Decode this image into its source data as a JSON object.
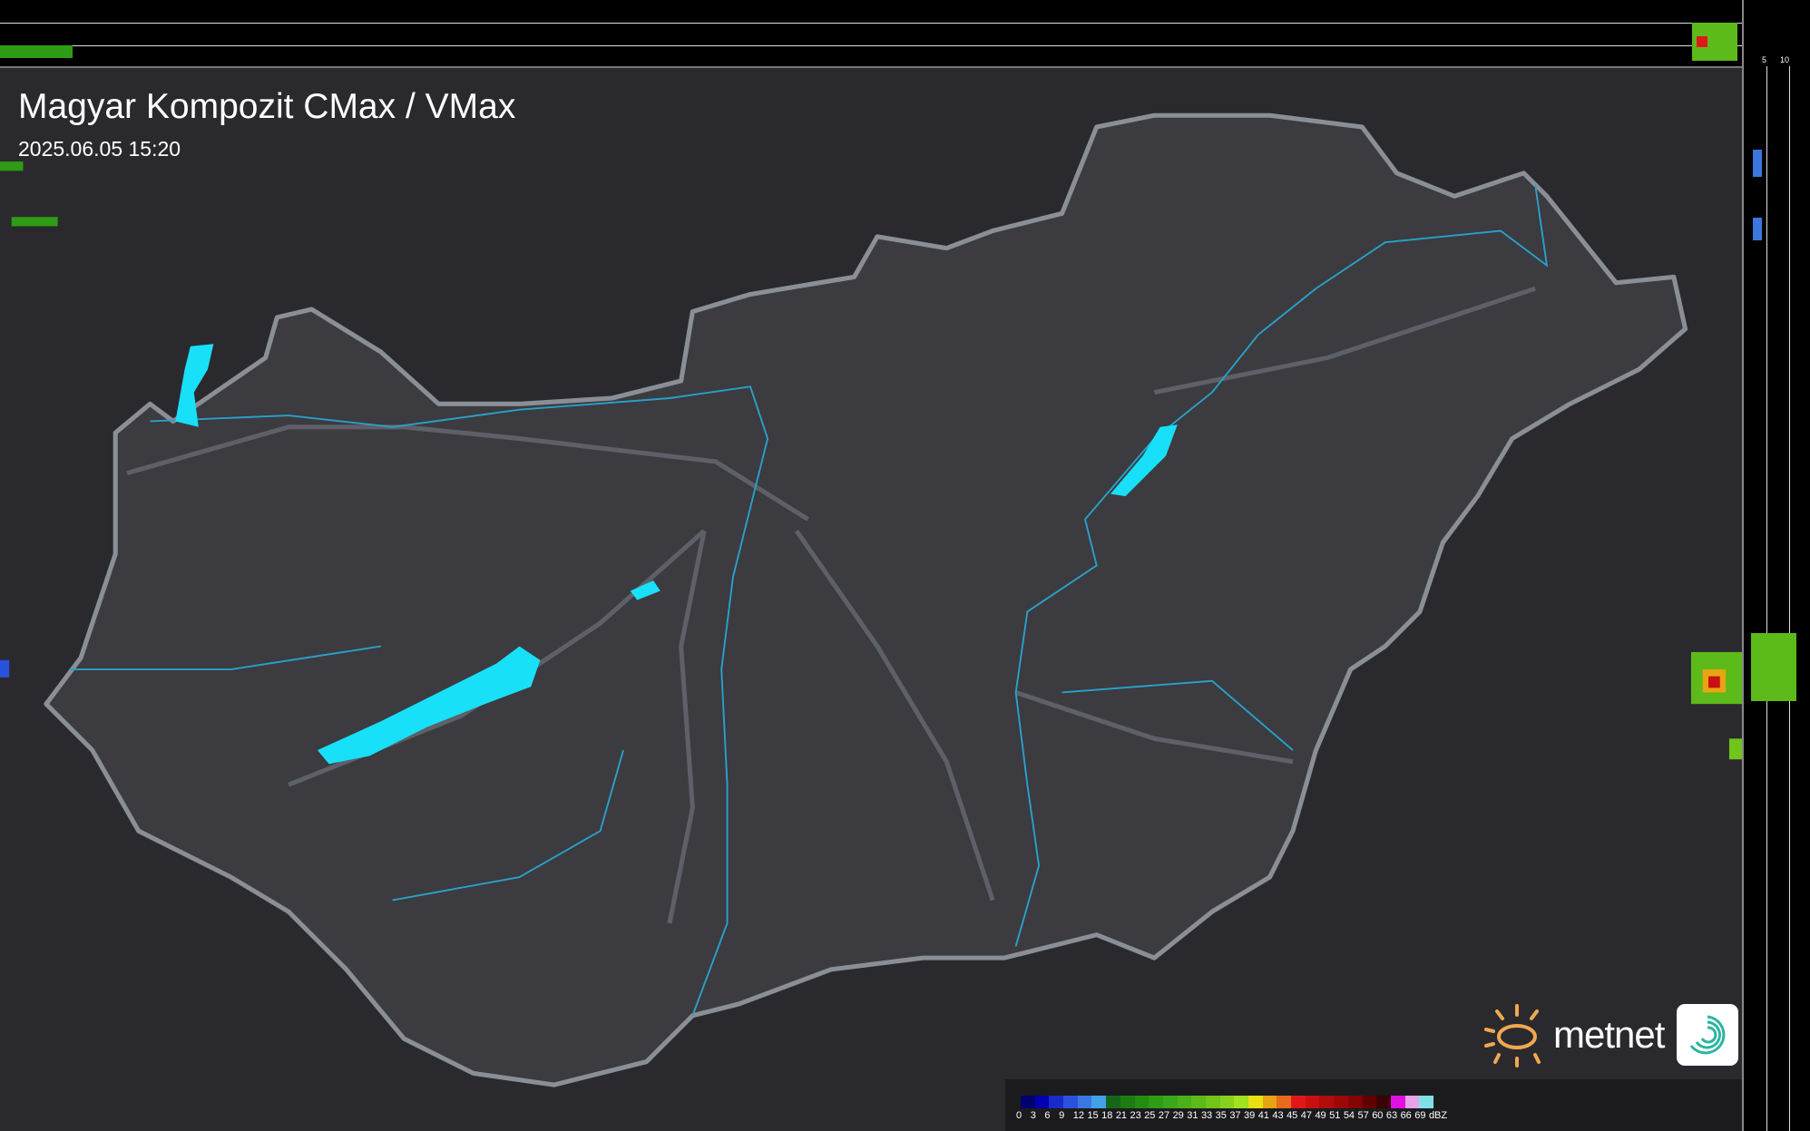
{
  "header": {
    "title": "Magyar Kompozit CMax / VMax",
    "timestamp": "2025.06.05 15:20"
  },
  "profile_axes": {
    "top_labels": [
      "10",
      "5"
    ],
    "right_labels": [
      "5",
      "10"
    ]
  },
  "legend": {
    "unit": "dBZ",
    "labels": [
      "0",
      "3",
      "6",
      "9",
      "12",
      "15",
      "18",
      "21",
      "23",
      "25",
      "27",
      "29",
      "31",
      "33",
      "35",
      "37",
      "39",
      "41",
      "43",
      "45",
      "47",
      "49",
      "51",
      "54",
      "57",
      "60",
      "63",
      "66",
      "69"
    ],
    "colors": [
      "#00006e",
      "#0000b0",
      "#1a2ac8",
      "#2a52dc",
      "#3a78e0",
      "#42a2e8",
      "#16661a",
      "#1e7c12",
      "#248c12",
      "#2e9c14",
      "#3aa818",
      "#4cb01a",
      "#5cba1a",
      "#70c41c",
      "#88d020",
      "#a2e020",
      "#e8e012",
      "#e8a412",
      "#e86a1e",
      "#e01818",
      "#c81010",
      "#b00c0c",
      "#9c0808",
      "#840404",
      "#620000",
      "#3a0202",
      "#e010e0",
      "#e8a2e8",
      "#80e0e8"
    ]
  },
  "colors": {
    "background": "#2a2a2e",
    "country_fill": "#3b3b40",
    "border": "#8a8f96",
    "rivers": "#2aa0c8",
    "lakes": "#18e0f8"
  },
  "logo": {
    "brand": "metnet"
  }
}
